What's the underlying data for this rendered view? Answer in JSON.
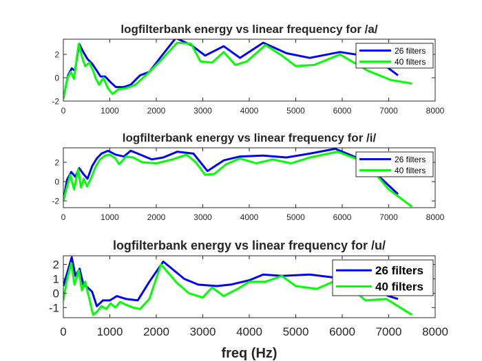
{
  "figure": {
    "xlabel": "freq (Hz)"
  },
  "chart_data": [
    {
      "type": "line",
      "title": "logfilterbank energy vs linear frequency for /a/",
      "xlabel": "",
      "ylabel": "",
      "xlim": [
        0,
        8000
      ],
      "ylim": [
        -2,
        3.3
      ],
      "xticks": [
        0,
        1000,
        2000,
        3000,
        4000,
        5000,
        6000,
        7000,
        8000
      ],
      "yticks": [
        -2,
        0,
        2
      ],
      "legend": "top-right",
      "series": [
        {
          "name": "26 filters",
          "color": "#0000ff",
          "x": [
            0,
            100,
            180,
            250,
            340,
            430,
            520,
            620,
            720,
            800,
            900,
            1020,
            1130,
            1300,
            1450,
            1650,
            1850,
            2100,
            2420,
            2750,
            3050,
            3450,
            3800,
            4300,
            4800,
            5300,
            5950,
            6450,
            6900,
            7200
          ],
          "y": [
            -1.8,
            0.2,
            0.8,
            0.6,
            2.9,
            2.2,
            1.6,
            1.2,
            0.6,
            0.1,
            0.1,
            -0.4,
            -0.8,
            -0.8,
            -0.6,
            0.2,
            0.5,
            1.8,
            3.4,
            2.8,
            1.9,
            2.7,
            1.7,
            3.0,
            2.1,
            1.7,
            2.2,
            1.9,
            1.1,
            0.2
          ]
        },
        {
          "name": "40 filters",
          "color": "#00ff00",
          "x": [
            0,
            90,
            160,
            230,
            330,
            400,
            470,
            560,
            650,
            700,
            770,
            860,
            960,
            1060,
            1180,
            1350,
            1550,
            1800,
            2100,
            2450,
            2750,
            2950,
            3200,
            3450,
            3700,
            3950,
            4350,
            4700,
            5000,
            5400,
            5950,
            6550,
            7050,
            7500
          ],
          "y": [
            -1.8,
            0.0,
            0.5,
            -0.1,
            2.9,
            1.8,
            1.0,
            1.3,
            0.5,
            -0.1,
            -0.6,
            0.0,
            -0.9,
            -1.4,
            -1.0,
            -0.9,
            -0.6,
            0.3,
            1.5,
            3.0,
            2.9,
            1.4,
            1.3,
            2.2,
            1.1,
            1.4,
            2.8,
            1.9,
            1.0,
            1.1,
            2.0,
            0.6,
            -0.2,
            -0.5
          ]
        }
      ]
    },
    {
      "type": "line",
      "title": "logfilterbank energy vs linear frequency for /i/",
      "xlabel": "",
      "ylabel": "",
      "xlim": [
        0,
        8000
      ],
      "ylim": [
        -2.7,
        3.5
      ],
      "xticks": [
        0,
        1000,
        2000,
        3000,
        4000,
        5000,
        6000,
        7000,
        8000
      ],
      "yticks": [
        -2,
        0,
        2
      ],
      "legend": "top-right",
      "series": [
        {
          "name": "26 filters",
          "color": "#0000ff",
          "x": [
            0,
            80,
            170,
            260,
            340,
            430,
            520,
            620,
            720,
            820,
            960,
            1120,
            1300,
            1450,
            1650,
            1900,
            2150,
            2450,
            2800,
            3100,
            3450,
            3800,
            4300,
            4800,
            5300,
            5850,
            6300,
            6800,
            7200
          ],
          "y": [
            -2.0,
            0.2,
            1.0,
            0.5,
            1.4,
            0.8,
            0.3,
            1.6,
            2.4,
            2.9,
            3.2,
            2.8,
            2.6,
            3.2,
            2.8,
            2.3,
            2.5,
            3.1,
            2.9,
            1.1,
            2.2,
            2.6,
            2.7,
            2.5,
            2.9,
            3.4,
            2.5,
            0.5,
            -1.3
          ]
        },
        {
          "name": "40 filters",
          "color": "#00ff00",
          "x": [
            0,
            80,
            150,
            230,
            320,
            380,
            440,
            510,
            600,
            690,
            790,
            900,
            1000,
            1120,
            1200,
            1350,
            1500,
            1700,
            2000,
            2350,
            2650,
            2850,
            3050,
            3250,
            3500,
            3800,
            4150,
            4500,
            4900,
            5300,
            5900,
            6500,
            7000,
            7500
          ],
          "y": [
            -2.0,
            -0.5,
            0.7,
            -0.8,
            1.3,
            -0.6,
            0.3,
            -0.5,
            0.4,
            1.5,
            2.3,
            2.7,
            2.8,
            2.4,
            1.8,
            2.6,
            2.5,
            2.0,
            1.9,
            2.3,
            2.8,
            2.0,
            0.7,
            0.8,
            1.8,
            2.4,
            1.9,
            2.3,
            1.9,
            2.5,
            3.1,
            2.0,
            -0.8,
            -2.6
          ]
        }
      ]
    },
    {
      "type": "line",
      "title": "logfilterbank energy vs linear frequency for /u/",
      "xlabel": "freq (Hz)",
      "ylabel": "",
      "xlim": [
        0,
        8000
      ],
      "ylim": [
        -1.7,
        2.6
      ],
      "xticks": [
        0,
        1000,
        2000,
        3000,
        4000,
        5000,
        6000,
        7000,
        8000
      ],
      "yticks": [
        -1,
        0,
        1,
        2
      ],
      "legend": "top-right",
      "series": [
        {
          "name": "26 filters",
          "color": "#0000ff",
          "x": [
            0,
            90,
            180,
            260,
            350,
            430,
            520,
            620,
            720,
            850,
            1000,
            1150,
            1350,
            1600,
            1850,
            2150,
            2600,
            2900,
            3300,
            3600,
            4000,
            4300,
            4700,
            5300,
            5800,
            6200,
            6600,
            7000,
            7200
          ],
          "y": [
            0.5,
            1.5,
            2.5,
            1.2,
            1.7,
            0.6,
            0.4,
            0.1,
            -0.9,
            -0.5,
            -0.5,
            -0.2,
            -0.4,
            -0.5,
            0.8,
            2.2,
            1.0,
            0.6,
            0.5,
            0.6,
            0.9,
            1.3,
            1.2,
            1.3,
            1.1,
            0.9,
            0.4,
            -0.2,
            -0.4
          ]
        },
        {
          "name": "40 filters",
          "color": "#00ff00",
          "x": [
            0,
            80,
            170,
            240,
            330,
            400,
            470,
            560,
            640,
            720,
            820,
            920,
            1020,
            1120,
            1220,
            1350,
            1500,
            1650,
            1850,
            2100,
            2450,
            2700,
            3000,
            3200,
            3450,
            3750,
            4000,
            4350,
            4700,
            5000,
            5450,
            5950,
            6500,
            6950,
            7500
          ],
          "y": [
            -0.5,
            1.0,
            2.1,
            0.6,
            1.6,
            0.2,
            0.8,
            -0.4,
            -1.5,
            -1.3,
            -0.9,
            -1.1,
            -0.7,
            -1.0,
            -0.6,
            -0.8,
            -1.0,
            -1.1,
            -0.4,
            2.0,
            0.7,
            0.0,
            -0.3,
            0.4,
            -0.2,
            0.3,
            0.8,
            0.8,
            1.2,
            0.5,
            0.3,
            1.0,
            -0.5,
            -0.4,
            -1.5
          ]
        }
      ]
    }
  ]
}
